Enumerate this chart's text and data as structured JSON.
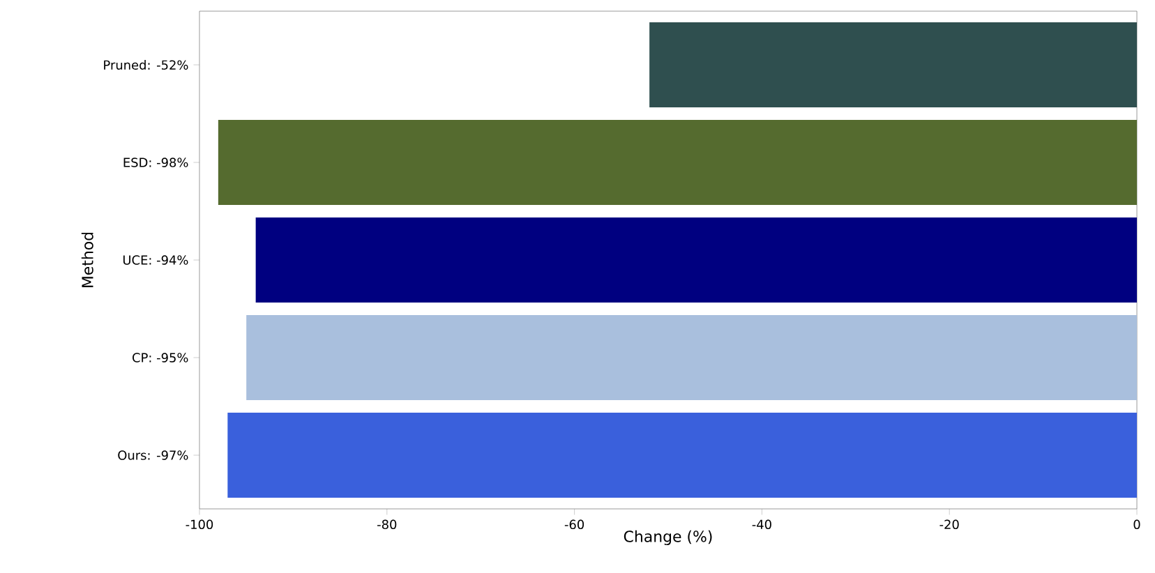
{
  "chart_data": {
    "type": "bar",
    "orientation": "horizontal",
    "xlabel": "Change (%)",
    "ylabel": "Method",
    "categories": [
      "Pruned: -52%",
      "ESD: -98%",
      "UCE: -94%",
      "CP: -95%",
      "Ours: -97%"
    ],
    "values": [
      -52,
      -98,
      -94,
      -95,
      -97
    ],
    "colors": [
      "#2f4f4f",
      "#556b2f",
      "#000080",
      "#a9bfdd",
      "#3a60dc"
    ],
    "xlim": [
      -100,
      0
    ],
    "xticks": [
      -100,
      -80,
      -60,
      -40,
      -20,
      0
    ]
  }
}
